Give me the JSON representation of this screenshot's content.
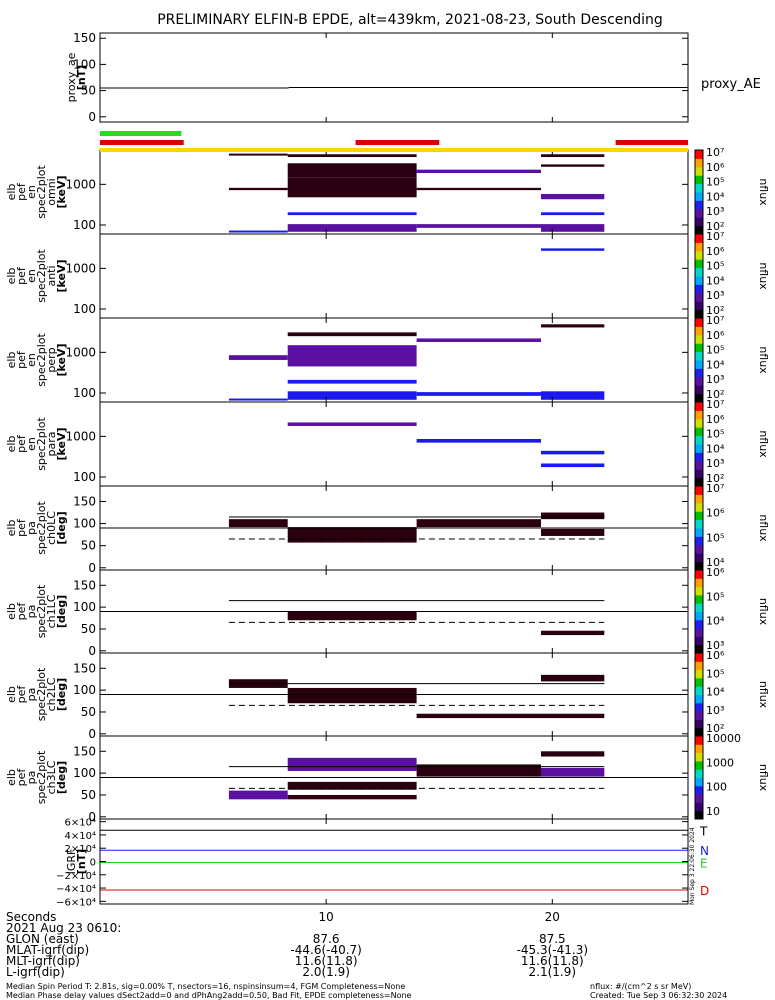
{
  "title": "PRELIMINARY ELFIN-B EPDE, alt=439km, 2021-08-23, South Descending",
  "colors": {
    "yellow": "#ffd500",
    "green": "#22dd22",
    "red": "#dd0000",
    "dark": "#2a0010",
    "purple": "#5a10a0",
    "blue": "#1a1aee"
  },
  "chart_data": [
    {
      "id": "proxy_ae",
      "type": "line",
      "ylabel_lines": [
        "proxy_ae",
        "[nT]"
      ],
      "ylim": [
        -10,
        160
      ],
      "yticks": [
        0,
        50,
        100,
        150
      ],
      "series": [
        {
          "name": "proxy_AE",
          "x": [
            0,
            8.3,
            8.4,
            26
          ],
          "y": [
            55,
            55,
            56,
            56
          ]
        }
      ]
    },
    {
      "id": "en_omni",
      "type": "heatmap",
      "log": true,
      "ylabel_lines": [
        "elb",
        "pef",
        "en",
        "spec2plot",
        "omni",
        "[keV]"
      ],
      "ylim": [
        60,
        7000
      ],
      "yticks": [
        100,
        1000
      ],
      "ytick_labels": [
        "100",
        "1000"
      ],
      "colorbar": {
        "label": "nflux",
        "min": 10,
        "max": 10000000,
        "ticks": [
          "10²",
          "10³",
          "10⁴",
          "10⁵",
          "10⁶",
          "10⁷"
        ]
      },
      "cells": [
        {
          "x": [
            5.7,
            8.3
          ],
          "y": [
            5100,
            5700
          ],
          "c": "dark"
        },
        {
          "x": [
            5.7,
            8.3
          ],
          "y": [
            720,
            820
          ],
          "c": "dark"
        },
        {
          "x": [
            5.7,
            8.3
          ],
          "y": [
            69,
            73
          ],
          "c": "blue"
        },
        {
          "x": [
            8.3,
            14
          ],
          "y": [
            4700,
            5500
          ],
          "c": "dark"
        },
        {
          "x": [
            8.3,
            14
          ],
          "y": [
            1500,
            3300
          ],
          "c": "dark"
        },
        {
          "x": [
            8.3,
            14
          ],
          "y": [
            480,
            1500
          ],
          "c": "dark"
        },
        {
          "x": [
            8.3,
            14
          ],
          "y": [
            175,
            205
          ],
          "c": "blue"
        },
        {
          "x": [
            8.3,
            14
          ],
          "y": [
            68,
            105
          ],
          "c": "purple"
        },
        {
          "x": [
            14,
            19.5
          ],
          "y": [
            1900,
            2300
          ],
          "c": "purple"
        },
        {
          "x": [
            14,
            19.5
          ],
          "y": [
            720,
            820
          ],
          "c": "dark"
        },
        {
          "x": [
            14,
            19.5
          ],
          "y": [
            85,
            105
          ],
          "c": "purple"
        },
        {
          "x": [
            19.5,
            22.3
          ],
          "y": [
            4700,
            5500
          ],
          "c": "dark"
        },
        {
          "x": [
            19.5,
            22.3
          ],
          "y": [
            2700,
            3100
          ],
          "c": "dark"
        },
        {
          "x": [
            19.5,
            22.3
          ],
          "y": [
            430,
            580
          ],
          "c": "purple"
        },
        {
          "x": [
            19.5,
            22.3
          ],
          "y": [
            175,
            205
          ],
          "c": "blue"
        },
        {
          "x": [
            19.5,
            22.3
          ],
          "y": [
            68,
            105
          ],
          "c": "purple"
        }
      ]
    },
    {
      "id": "en_anti",
      "type": "heatmap",
      "log": true,
      "ylabel_lines": [
        "elb",
        "pef",
        "en",
        "spec2plot",
        "anti",
        "[keV]"
      ],
      "ylim": [
        60,
        7000
      ],
      "yticks": [
        100,
        1000
      ],
      "ytick_labels": [
        "100",
        "1000"
      ],
      "colorbar": {
        "label": "nflux",
        "min": 10,
        "max": 10000000,
        "ticks": [
          "10²",
          "10³",
          "10⁴",
          "10⁵",
          "10⁶",
          "10⁷"
        ]
      },
      "cells": [
        {
          "x": [
            19.5,
            22.3
          ],
          "y": [
            2700,
            3100
          ],
          "c": "blue"
        }
      ]
    },
    {
      "id": "en_perp",
      "type": "heatmap",
      "log": true,
      "ylabel_lines": [
        "elb",
        "pef",
        "en",
        "spec2plot",
        "perp",
        "[keV]"
      ],
      "ylim": [
        60,
        7000
      ],
      "yticks": [
        100,
        1000
      ],
      "ytick_labels": [
        "100",
        "1000"
      ],
      "colorbar": {
        "label": "nflux",
        "min": 10,
        "max": 10000000,
        "ticks": [
          "10²",
          "10³",
          "10⁴",
          "10⁵",
          "10⁶",
          "10⁷"
        ]
      },
      "cells": [
        {
          "x": [
            5.7,
            8.3
          ],
          "y": [
            650,
            850
          ],
          "c": "purple"
        },
        {
          "x": [
            5.7,
            8.3
          ],
          "y": [
            69,
            73
          ],
          "c": "blue"
        },
        {
          "x": [
            8.3,
            14
          ],
          "y": [
            2500,
            3100
          ],
          "c": "dark"
        },
        {
          "x": [
            8.3,
            14
          ],
          "y": [
            450,
            1500
          ],
          "c": "purple"
        },
        {
          "x": [
            8.3,
            14
          ],
          "y": [
            170,
            210
          ],
          "c": "blue"
        },
        {
          "x": [
            8.3,
            14
          ],
          "y": [
            68,
            110
          ],
          "c": "blue"
        },
        {
          "x": [
            14,
            19.5
          ],
          "y": [
            1800,
            2200
          ],
          "c": "purple"
        },
        {
          "x": [
            14,
            19.5
          ],
          "y": [
            85,
            105
          ],
          "c": "blue"
        },
        {
          "x": [
            19.5,
            22.3
          ],
          "y": [
            4100,
            4900
          ],
          "c": "dark"
        },
        {
          "x": [
            19.5,
            22.3
          ],
          "y": [
            68,
            110
          ],
          "c": "blue"
        }
      ]
    },
    {
      "id": "en_para",
      "type": "heatmap",
      "log": true,
      "ylabel_lines": [
        "elb",
        "pef",
        "en",
        "spec2plot",
        "para",
        "[keV]"
      ],
      "ylim": [
        60,
        7000
      ],
      "yticks": [
        100,
        1000
      ],
      "ytick_labels": [
        "100",
        "1000"
      ],
      "colorbar": {
        "label": "nflux",
        "min": 10,
        "max": 10000000,
        "ticks": [
          "10²",
          "10³",
          "10⁴",
          "10⁵",
          "10⁶",
          "10⁷"
        ]
      },
      "cells": [
        {
          "x": [
            8.3,
            14
          ],
          "y": [
            1800,
            2200
          ],
          "c": "purple"
        },
        {
          "x": [
            14,
            19.5
          ],
          "y": [
            700,
            860
          ],
          "c": "blue"
        },
        {
          "x": [
            19.5,
            22.3
          ],
          "y": [
            360,
            440
          ],
          "c": "blue"
        },
        {
          "x": [
            19.5,
            22.3
          ],
          "y": [
            175,
            215
          ],
          "c": "blue"
        }
      ]
    },
    {
      "id": "pa_ch0",
      "type": "heatmap",
      "ylabel_lines": [
        "elb",
        "pef",
        "pa",
        "spec2plot",
        "ch0LC",
        "[deg]"
      ],
      "ylim": [
        -5,
        185
      ],
      "yticks": [
        0,
        50,
        100,
        150
      ],
      "colorbar": {
        "label": "nflux",
        "min": 10000,
        "max": 10000000,
        "ticks": [
          "10⁴",
          "10⁵",
          "10⁶",
          "10⁷"
        ]
      },
      "hline": 90,
      "lc_solid": 115,
      "lc_dashed": 65,
      "cells": [
        {
          "x": [
            5.7,
            8.3
          ],
          "y": [
            92,
            110
          ],
          "c": "dark"
        },
        {
          "x": [
            8.3,
            14
          ],
          "y": [
            57,
            92
          ],
          "c": "dark"
        },
        {
          "x": [
            14,
            19.5
          ],
          "y": [
            92,
            110
          ],
          "c": "dark"
        },
        {
          "x": [
            19.5,
            22.3
          ],
          "y": [
            110,
            125
          ],
          "c": "dark"
        },
        {
          "x": [
            19.5,
            22.3
          ],
          "y": [
            72,
            88
          ],
          "c": "dark"
        }
      ]
    },
    {
      "id": "pa_ch1",
      "type": "heatmap",
      "ylabel_lines": [
        "elb",
        "pef",
        "pa",
        "spec2plot",
        "ch1LC",
        "[deg]"
      ],
      "ylim": [
        -5,
        185
      ],
      "yticks": [
        0,
        50,
        100,
        150
      ],
      "colorbar": {
        "label": "nflux",
        "min": 1000,
        "max": 10000000,
        "ticks": [
          "10³",
          "10⁴",
          "10⁵",
          "10⁶"
        ]
      },
      "hline": 90,
      "lc_solid": 115,
      "lc_dashed": 65,
      "cells": [
        {
          "x": [
            8.3,
            14
          ],
          "y": [
            70,
            90
          ],
          "c": "dark"
        },
        {
          "x": [
            19.5,
            22.3
          ],
          "y": [
            36,
            46
          ],
          "c": "dark"
        }
      ]
    },
    {
      "id": "pa_ch2",
      "type": "heatmap",
      "ylabel_lines": [
        "elb",
        "pef",
        "pa",
        "spec2plot",
        "ch2LC",
        "[deg]"
      ],
      "ylim": [
        -5,
        185
      ],
      "yticks": [
        0,
        50,
        100,
        150
      ],
      "colorbar": {
        "label": "nflux",
        "min": 100,
        "max": 10000000,
        "ticks": [
          "10²",
          "10³",
          "10⁴",
          "10⁵",
          "10⁶"
        ]
      },
      "hline": 90,
      "lc_solid": 115,
      "lc_dashed": 65,
      "cells": [
        {
          "x": [
            5.7,
            8.3
          ],
          "y": [
            105,
            125
          ],
          "c": "dark"
        },
        {
          "x": [
            8.3,
            14
          ],
          "y": [
            70,
            105
          ],
          "c": "dark"
        },
        {
          "x": [
            14,
            19.5
          ],
          "y": [
            36,
            46
          ],
          "c": "dark"
        },
        {
          "x": [
            19.5,
            22.3
          ],
          "y": [
            120,
            135
          ],
          "c": "dark"
        },
        {
          "x": [
            19.5,
            22.3
          ],
          "y": [
            36,
            46
          ],
          "c": "dark"
        }
      ]
    },
    {
      "id": "pa_ch3",
      "type": "heatmap",
      "ylabel_lines": [
        "elb",
        "pef",
        "pa",
        "spec2plot",
        "ch3LC",
        "[deg]"
      ],
      "ylim": [
        -5,
        185
      ],
      "yticks": [
        0,
        50,
        100,
        150
      ],
      "colorbar": {
        "label": "nflux",
        "min": 10,
        "max": 10000,
        "ticks": [
          "10",
          "100",
          "1000",
          "10000"
        ]
      },
      "hline": 90,
      "lc_solid": 115,
      "lc_dashed": 65,
      "cells": [
        {
          "x": [
            5.7,
            8.3
          ],
          "y": [
            40,
            60
          ],
          "c": "purple"
        },
        {
          "x": [
            8.3,
            14
          ],
          "y": [
            105,
            135
          ],
          "c": "purple"
        },
        {
          "x": [
            8.3,
            14
          ],
          "y": [
            62,
            80
          ],
          "c": "dark"
        },
        {
          "x": [
            8.3,
            14
          ],
          "y": [
            40,
            50
          ],
          "c": "dark"
        },
        {
          "x": [
            14,
            19.5
          ],
          "y": [
            92,
            120
          ],
          "c": "dark"
        },
        {
          "x": [
            19.5,
            22.3
          ],
          "y": [
            138,
            150
          ],
          "c": "dark"
        },
        {
          "x": [
            19.5,
            22.3
          ],
          "y": [
            92,
            112
          ],
          "c": "purple"
        }
      ]
    },
    {
      "id": "igrf",
      "type": "line",
      "ylabel_lines": [
        "IGRF",
        "[nT]"
      ],
      "ylim": [
        -64000,
        64000
      ],
      "yticks": [
        -60000,
        -40000,
        -20000,
        0,
        20000,
        40000,
        60000
      ],
      "ytick_labels": [
        "−6×10⁴",
        "−4×10⁴",
        "−2×10⁴",
        "0",
        "2×10⁴",
        "4×10⁴",
        "6×10⁴"
      ],
      "series": [
        {
          "name": "T",
          "color": "#000000",
          "x": [
            0,
            26
          ],
          "y": [
            47000,
            47000
          ]
        },
        {
          "name": "N",
          "color": "#1a1aee",
          "x": [
            0,
            26
          ],
          "y": [
            17000,
            17000
          ]
        },
        {
          "name": "E",
          "color": "#22cc22",
          "x": [
            0,
            26
          ],
          "y": [
            -1500,
            -1500
          ]
        },
        {
          "name": "D",
          "color": "#dd0000",
          "x": [
            0,
            26
          ],
          "y": [
            -43000,
            -43000
          ]
        }
      ]
    }
  ],
  "status_bars": [
    {
      "color": "green",
      "segments": [
        [
          0,
          3.6
        ]
      ]
    },
    {
      "color": "red",
      "segments": [
        [
          0,
          3.7
        ],
        [
          11.3,
          15
        ],
        [
          22.8,
          26
        ]
      ]
    },
    {
      "color": "yellow",
      "segments": [
        [
          0,
          26
        ]
      ]
    }
  ],
  "x_axis": {
    "xlim": [
      0,
      26
    ],
    "ticks": [
      10,
      20
    ]
  },
  "ae_legend": "proxy_AE",
  "side_stamp": "Mon Sep  3 22:06:30 2024",
  "footer": {
    "rows": [
      {
        "label": "Seconds",
        "v1": "10",
        "v2": "20"
      },
      {
        "label": "2021 Aug 23 0610:",
        "v1": "",
        "v2": ""
      },
      {
        "label": "GLON (east)",
        "v1": "87.6",
        "v2": "87.5"
      },
      {
        "label": "MLAT-igrf(dip)",
        "v1": "-44.6(-40.7)",
        "v2": "-45.3(-41.3)"
      },
      {
        "label": "MLT-igrf(dip)",
        "v1": "11.6(11.8)",
        "v2": "11.6(11.8)"
      },
      {
        "label": "L-igrf(dip)",
        "v1": "2.0(1.9)",
        "v2": "2.1(1.9)"
      }
    ],
    "note_line1": "Median Spin Period T: 2.81s, sig=0.00% T, nsectors=16, nspinsinsum=4, FGM Completeness=None",
    "note_line2": "Median Phase delay values dSect2add=0 and dPhAng2add=0.50, Bad Fit, EPDE completeness=None",
    "nflux_units": "nflux: #/(cm^2 s sr MeV)",
    "created": "Created: Tue Sep  3 06:32:30 2024"
  }
}
